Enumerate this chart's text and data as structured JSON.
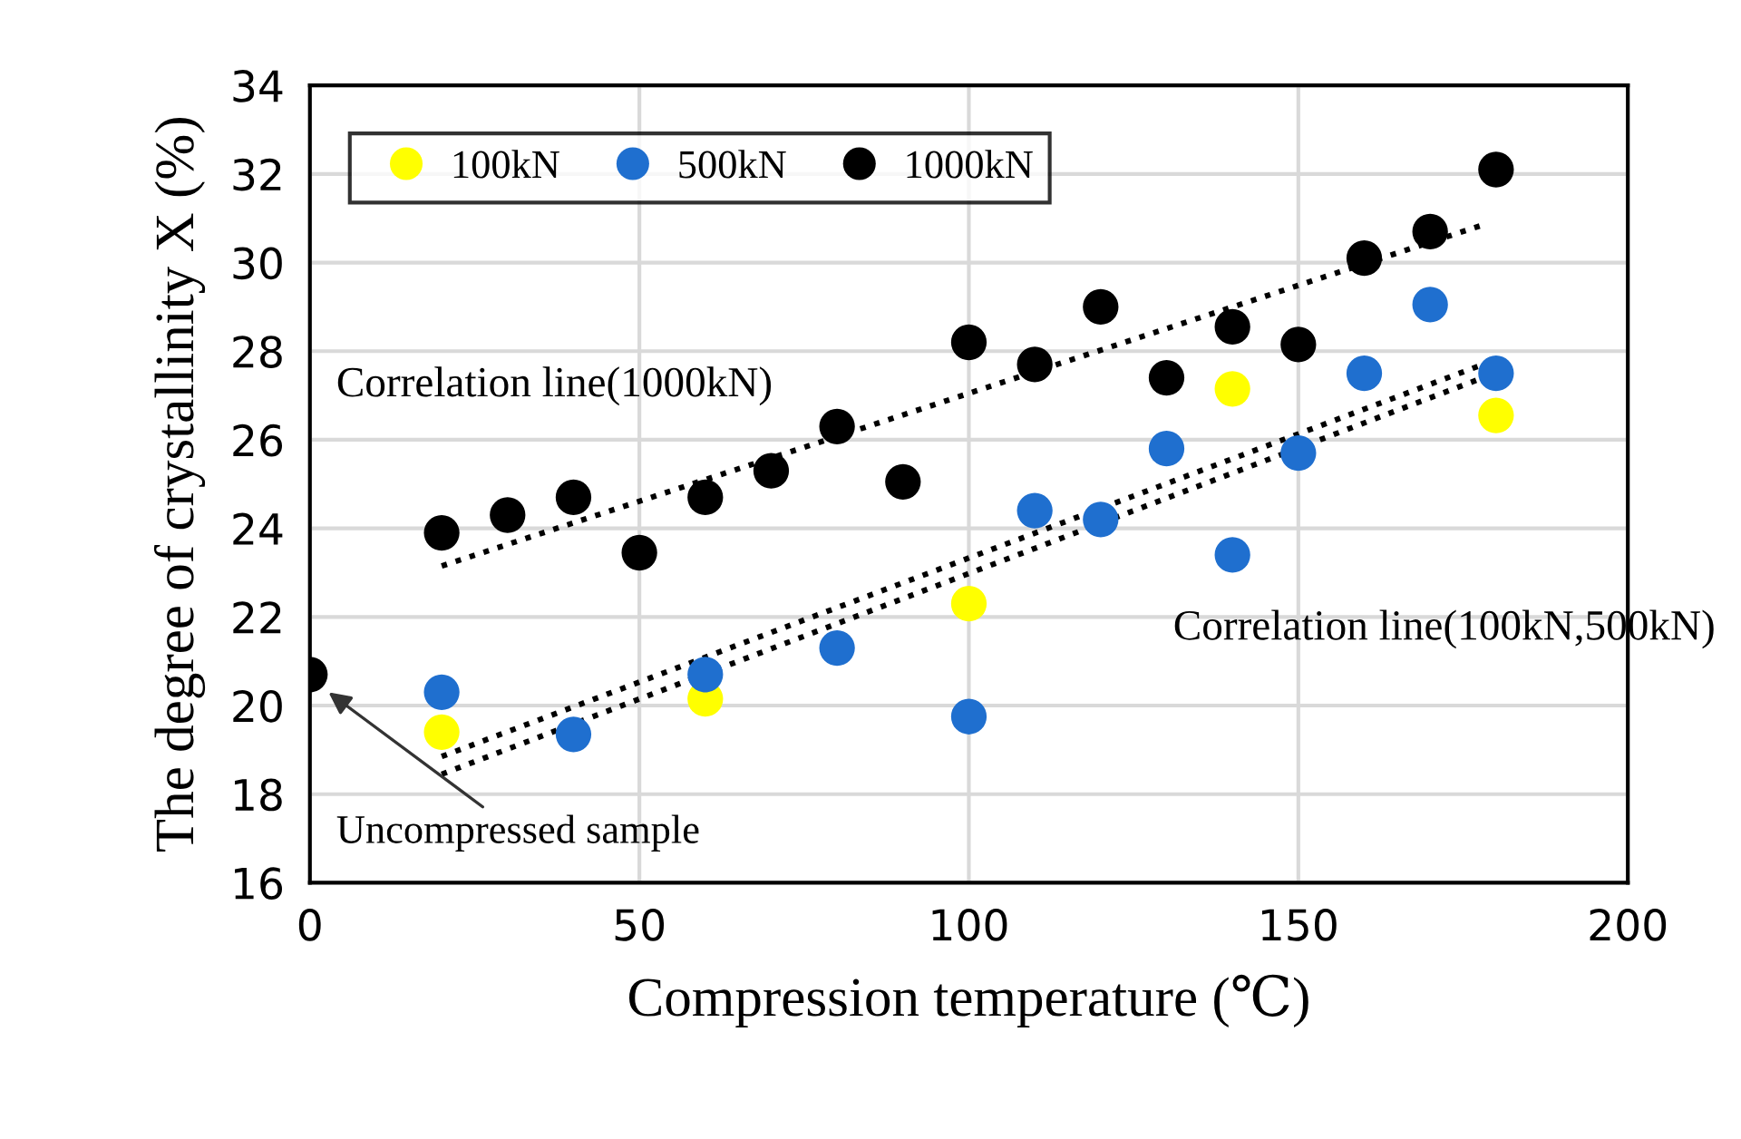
{
  "chart_data": {
    "type": "scatter",
    "xlabel": "Compression temperature (℃)",
    "ylabel": "The degree of crystallinity X (%)",
    "xlim": [
      0,
      200
    ],
    "ylim": [
      16,
      34
    ],
    "xticks": [
      0,
      50,
      100,
      150,
      200
    ],
    "yticks": [
      16,
      18,
      20,
      22,
      24,
      26,
      28,
      30,
      32,
      34
    ],
    "grid": true,
    "legend": "top left",
    "marker": "circle",
    "series": [
      {
        "name": "100kN",
        "color": "#ffff00",
        "x": [
          20,
          60,
          100,
          140,
          180
        ],
        "values": [
          19.4,
          20.15,
          22.3,
          27.15,
          26.55
        ]
      },
      {
        "name": "500kN",
        "color": "#1f6fcf",
        "x": [
          20,
          40,
          60,
          80,
          100,
          110,
          120,
          130,
          140,
          150,
          160,
          170,
          180
        ],
        "values": [
          20.3,
          19.35,
          20.7,
          21.3,
          19.75,
          24.4,
          24.2,
          25.8,
          23.4,
          25.7,
          27.5,
          29.05,
          27.5
        ]
      },
      {
        "name": "1000kN",
        "color": "#000000",
        "x": [
          0,
          20,
          30,
          40,
          50,
          60,
          70,
          80,
          90,
          100,
          110,
          120,
          130,
          140,
          150,
          160,
          170,
          180
        ],
        "values": [
          20.7,
          23.9,
          24.3,
          24.7,
          23.45,
          24.7,
          25.3,
          26.3,
          25.05,
          28.2,
          27.7,
          29.0,
          27.4,
          28.55,
          28.15,
          30.1,
          30.7,
          32.1
        ]
      },
      {
        "type": "line",
        "color": "#000000",
        "line_style": "dotted",
        "marker": "none",
        "x": [
          20,
          178
        ],
        "values": [
          23.15,
          30.85
        ]
      },
      {
        "type": "line",
        "color": "#000000",
        "line_style": "dotted",
        "marker": "none",
        "x": [
          20,
          178
        ],
        "values": [
          18.85,
          27.7
        ]
      },
      {
        "type": "line",
        "color": "#000000",
        "line_style": "dotted",
        "marker": "none",
        "x": [
          20,
          178
        ],
        "values": [
          18.45,
          27.4
        ]
      }
    ],
    "annotations": [
      "Correlation line(1000kN)",
      "Correlation line(100kN,500kN)",
      "Uncompressed sample"
    ]
  }
}
